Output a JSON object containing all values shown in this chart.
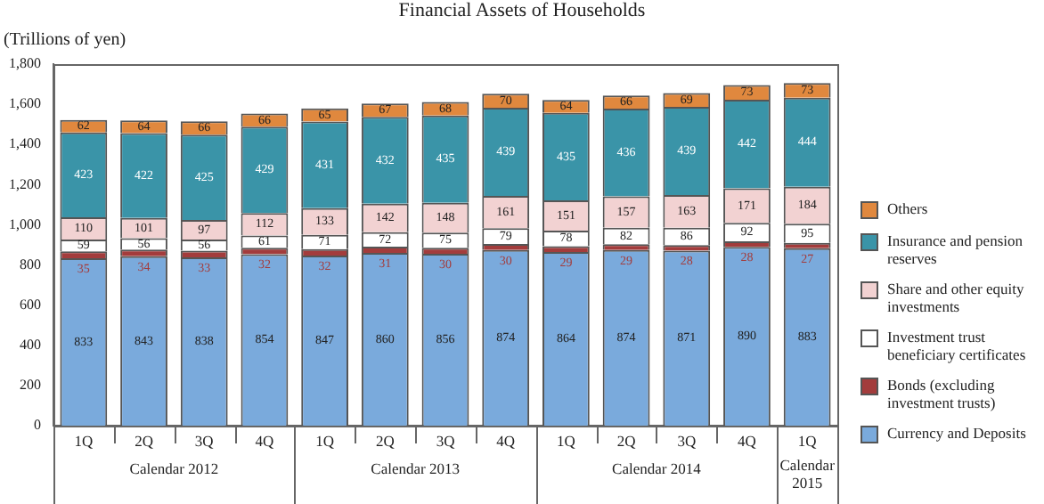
{
  "chart_data": {
    "type": "bar",
    "title": "Financial Assets of Households",
    "ylabel": "(Trillions of yen)",
    "categories": [
      "1Q",
      "2Q",
      "3Q",
      "4Q",
      "1Q",
      "2Q",
      "3Q",
      "4Q",
      "1Q",
      "2Q",
      "3Q",
      "4Q",
      "1Q"
    ],
    "annotations": [
      "Calendar 2012",
      "Calendar 2013",
      "Calendar 2014",
      "Calendar 2015"
    ],
    "stacked": true,
    "data_labels": true,
    "legend": "right",
    "grid": false,
    "ylim": [
      0,
      1800
    ],
    "yticks": [
      0,
      200,
      400,
      600,
      800,
      {
        "value": 1000,
        "label": "1,000"
      },
      {
        "value": 1200,
        "label": "1,200"
      },
      {
        "value": 1400,
        "label": "1,400"
      },
      {
        "value": 1600,
        "label": "1,600"
      },
      {
        "value": 1800,
        "label": "1,800"
      }
    ],
    "series": [
      {
        "name": "Currency and Deposits",
        "color": "#7aaadc",
        "values": [
          833,
          843,
          838,
          854,
          847,
          860,
          856,
          874,
          864,
          874,
          871,
          890,
          883
        ]
      },
      {
        "name": "Bonds (excluding investment trusts)",
        "color": "#a33c3c",
        "values": [
          35,
          34,
          33,
          32,
          32,
          31,
          30,
          30,
          29,
          29,
          28,
          28,
          27
        ]
      },
      {
        "name": "Investment trust beneficiary certificates",
        "color": "#ffffff",
        "values": [
          59,
          56,
          56,
          61,
          71,
          72,
          75,
          79,
          78,
          82,
          86,
          92,
          95
        ]
      },
      {
        "name": "Share and other equity investments",
        "color": "#f2d2d2",
        "values": [
          110,
          101,
          97,
          112,
          133,
          142,
          148,
          161,
          151,
          157,
          163,
          171,
          184
        ]
      },
      {
        "name": "Insurance and pension reserves",
        "color": "#3a94a8",
        "values": [
          423,
          422,
          425,
          429,
          431,
          432,
          435,
          439,
          435,
          436,
          439,
          442,
          444
        ]
      },
      {
        "name": "Others",
        "color": "#e0883e",
        "values": [
          62,
          64,
          66,
          66,
          65,
          67,
          68,
          70,
          64,
          66,
          69,
          73,
          73
        ]
      }
    ]
  }
}
